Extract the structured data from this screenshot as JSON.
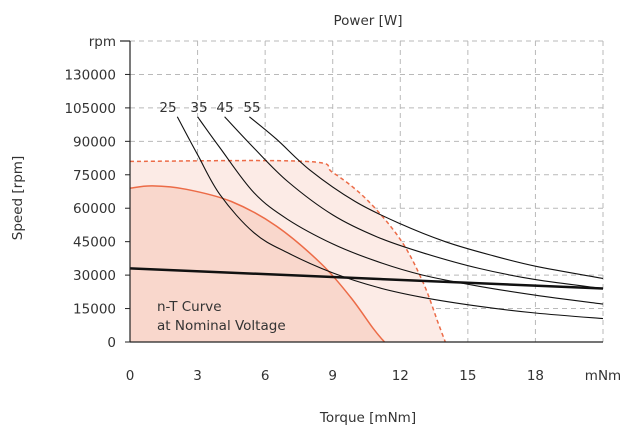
{
  "chart_data": {
    "type": "line",
    "title": "Power [W]",
    "xlabel": "Torque [mNm]",
    "ylabel": "Speed [rpm]",
    "x_unit_label": "mNm",
    "y_unit_label": "rpm",
    "xlim": [
      0,
      21
    ],
    "x_ticks": [
      0,
      3,
      6,
      9,
      12,
      15,
      18
    ],
    "x_tick_labels": [
      "0",
      "3",
      "6",
      "9",
      "12",
      "15",
      "18"
    ],
    "ylim": [
      0,
      150000
    ],
    "y_ticks": [
      0,
      15000,
      30000,
      45000,
      60000,
      75000,
      90000,
      105000,
      130000
    ],
    "y_tick_labels": [
      "0",
      "15000",
      "30000",
      "45000",
      "60000",
      "75000",
      "90000",
      "105000",
      "130000"
    ],
    "grid": true,
    "power_curve_labels": [
      "25",
      "35",
      "45",
      "55"
    ],
    "power_curves": [
      {
        "label": "25",
        "x": [
          2.1,
          3.0,
          4.0,
          5.5,
          7.0,
          9.0,
          11.0,
          13.0,
          15.5,
          18.0,
          21.0
        ],
        "y": [
          101000,
          84000,
          66000,
          49000,
          40000,
          31000,
          24500,
          20000,
          16000,
          13000,
          10500
        ]
      },
      {
        "label": "35",
        "x": [
          3.0,
          4.0,
          5.5,
          7.0,
          9.0,
          11.0,
          13.0,
          15.5,
          18.0,
          21.0
        ],
        "y": [
          101000,
          87000,
          67000,
          55000,
          44000,
          36000,
          30000,
          25000,
          21000,
          17000
        ]
      },
      {
        "label": "45",
        "x": [
          4.2,
          5.5,
          7.0,
          9.0,
          11.0,
          13.0,
          15.5,
          18.0,
          21.0
        ],
        "y": [
          101000,
          87000,
          72000,
          57000,
          47000,
          40000,
          33000,
          28000,
          24000
        ]
      },
      {
        "label": "55",
        "x": [
          5.3,
          6.5,
          8.0,
          10.0,
          12.0,
          14.0,
          16.0,
          18.0,
          21.0
        ],
        "y": [
          101000,
          91000,
          77000,
          63000,
          53000,
          45000,
          39000,
          34000,
          28500
        ]
      }
    ],
    "nominal_line": {
      "x": [
        0,
        21
      ],
      "y": [
        33000,
        24000
      ]
    },
    "continuous_region": {
      "x": [
        0,
        1.0,
        2.5,
        4.5,
        6.5,
        8.5,
        9.8,
        10.8,
        11.3
      ],
      "y": [
        69000,
        70000,
        68500,
        63000,
        52000,
        35000,
        20000,
        6000,
        0
      ]
    },
    "intermittent_region": {
      "x": [
        0,
        7.8,
        9.0,
        10.5,
        12.0,
        13.0,
        13.7,
        14.0
      ],
      "y": [
        81000,
        81000,
        76000,
        64000,
        46000,
        27000,
        8000,
        0
      ]
    },
    "colors": {
      "continuous_fill": "#f9d7cc",
      "continuous_stroke": "#ec6b47",
      "intermittent_fill": "#fcebe6",
      "intermittent_stroke": "#ec6b47",
      "curves": "#111111",
      "grid": "#b9b9b9"
    },
    "annotations": [
      "n-T Curve",
      "at Nominal Voltage"
    ]
  }
}
